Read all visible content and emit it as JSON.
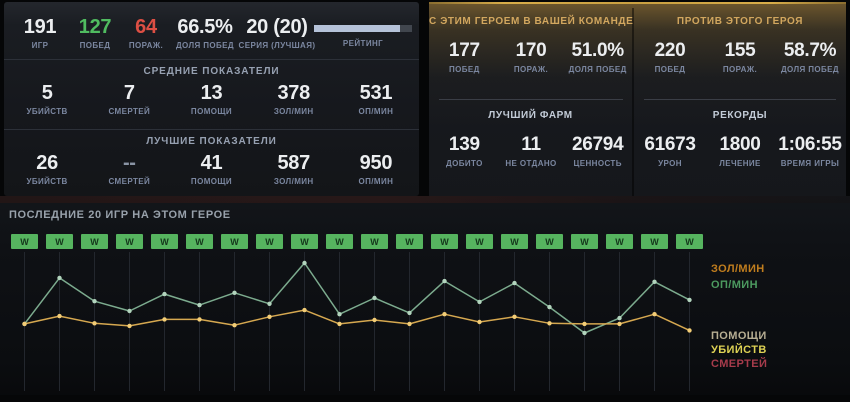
{
  "overview": {
    "stats": [
      {
        "value": "191",
        "label": "ИГР"
      },
      {
        "value": "127",
        "label": "ПОБЕД",
        "color": "green"
      },
      {
        "value": "64",
        "label": "ПОРАЖ.",
        "color": "red"
      },
      {
        "value": "66.5%",
        "label": "ДОЛЯ ПОБЕД"
      },
      {
        "value": "20 (20)",
        "label": "СЕРИЯ (ЛУЧШАЯ)"
      }
    ],
    "rating": {
      "label": "РЕЙТИНГ",
      "fill_percent": 88
    }
  },
  "averages": {
    "title": "СРЕДНИЕ ПОКАЗАТЕЛИ",
    "stats": [
      {
        "value": "5",
        "label": "УБИЙСТВ"
      },
      {
        "value": "7",
        "label": "СМЕРТЕЙ"
      },
      {
        "value": "13",
        "label": "ПОМОЩИ"
      },
      {
        "value": "378",
        "label": "ЗОЛ/МИН"
      },
      {
        "value": "531",
        "label": "ОП/МИН"
      }
    ]
  },
  "bests": {
    "title": "ЛУЧШИЕ ПОКАЗАТЕЛИ",
    "stats": [
      {
        "value": "26",
        "label": "УБИЙСТВ"
      },
      {
        "value": "--",
        "label": "СМЕРТЕЙ",
        "dim": true
      },
      {
        "value": "41",
        "label": "ПОМОЩИ"
      },
      {
        "value": "587",
        "label": "ЗОЛ/МИН"
      },
      {
        "value": "950",
        "label": "ОП/МИН"
      }
    ]
  },
  "with_hero": {
    "header": "С ЭТИМ ГЕРОЕМ В ВАШЕЙ КОМАНДЕ",
    "stats": [
      {
        "value": "177",
        "label": "ПОБЕД"
      },
      {
        "value": "170",
        "label": "ПОРАЖ."
      },
      {
        "value": "51.0%",
        "label": "ДОЛЯ ПОБЕД"
      }
    ]
  },
  "against_hero": {
    "header": "ПРОТИВ ЭТОГО ГЕРОЯ",
    "stats": [
      {
        "value": "220",
        "label": "ПОБЕД"
      },
      {
        "value": "155",
        "label": "ПОРАЖ."
      },
      {
        "value": "58.7%",
        "label": "ДОЛЯ ПОБЕД"
      }
    ]
  },
  "best_farm": {
    "header": "ЛУЧШИЙ ФАРМ",
    "stats": [
      {
        "value": "139",
        "label": "ДОБИТО"
      },
      {
        "value": "11",
        "label": "НЕ ОТДАНО"
      },
      {
        "value": "26794",
        "label": "ЦЕННОСТЬ"
      }
    ]
  },
  "records": {
    "header": "РЕКОРДЫ",
    "stats": [
      {
        "value": "61673",
        "label": "УРОН"
      },
      {
        "value": "1800",
        "label": "ЛЕЧЕНИЕ"
      },
      {
        "value": "1:06:55",
        "label": "ВРЕМЯ ИГРЫ"
      }
    ]
  },
  "recent": {
    "title": "ПОСЛЕДНИЕ 20 ИГР НА ЭТОМ ГЕРОЕ",
    "results": [
      "W",
      "W",
      "W",
      "W",
      "W",
      "W",
      "W",
      "W",
      "W",
      "W",
      "W",
      "W",
      "W",
      "W",
      "W",
      "W",
      "W",
      "W",
      "W",
      "W"
    ],
    "win_color": "#56b45f",
    "legend_rates": [
      {
        "label": "ЗОЛ/МИН",
        "color": "#c07d1e"
      },
      {
        "label": "ОП/МИН",
        "color": "#4c9a5f"
      }
    ],
    "legend_kda": [
      {
        "label": "ПОМОЩИ",
        "color": "#b7ae93"
      },
      {
        "label": "УБИЙСТВ",
        "color": "#ded254"
      },
      {
        "label": "СМЕРТЕЙ",
        "color": "#a63b4b"
      }
    ]
  },
  "chart_data": {
    "type": "line",
    "x": [
      1,
      2,
      3,
      4,
      5,
      6,
      7,
      8,
      9,
      10,
      11,
      12,
      13,
      14,
      15,
      16,
      17,
      18,
      19,
      20
    ],
    "series": [
      {
        "name": "ОП/МИН",
        "color": "#7cab8e",
        "marker_color": "#b2d4bd",
        "values": [
          480,
          835,
          655,
          580,
          710,
          625,
          720,
          635,
          950,
          555,
          680,
          565,
          810,
          650,
          795,
          610,
          410,
          525,
          805,
          665
        ]
      },
      {
        "name": "ЗОЛ/МИН",
        "color": "#d6a850",
        "marker_color": "#f3cd76",
        "values": [
          480,
          540,
          485,
          465,
          515,
          515,
          470,
          535,
          587,
          480,
          510,
          480,
          555,
          495,
          535,
          485,
          480,
          480,
          555,
          430
        ]
      }
    ],
    "title": "ПОСЛЕДНИЕ 20 ИГР НА ЭТОМ ГЕРОЕ",
    "xlabel": "",
    "ylabel": "",
    "grid": "vertical-only",
    "legend_position": "right",
    "ylim_estimated": [
      400,
      960
    ]
  }
}
